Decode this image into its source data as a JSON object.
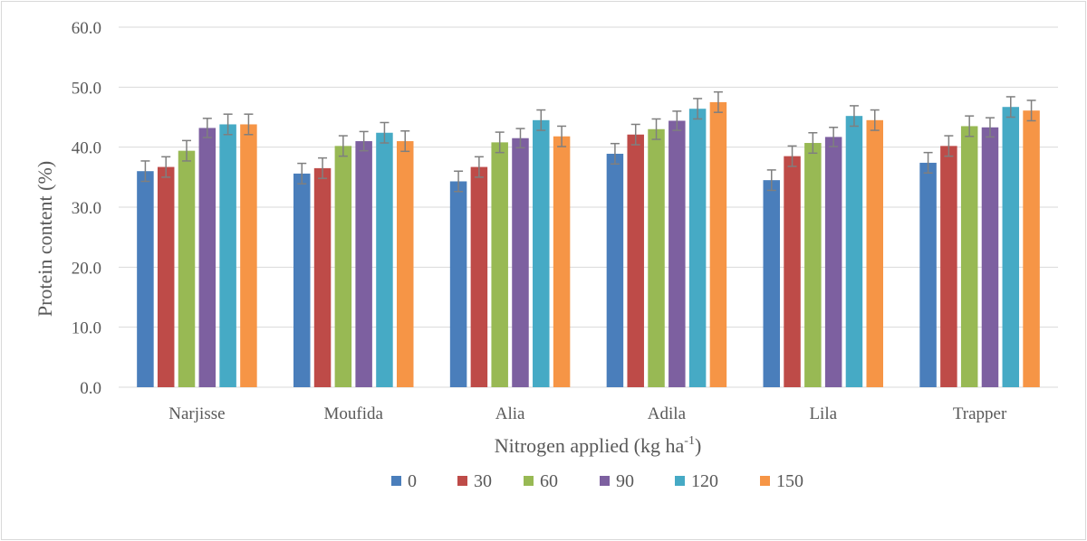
{
  "chart_data": {
    "type": "bar",
    "title": "",
    "xlabel": "Nitrogen applied (kg ha",
    "xlabel_superscript": "-1",
    "xlabel_close": ")",
    "ylabel": "Protein content (%)",
    "ylim": [
      0,
      60
    ],
    "yticks": [
      "0.0",
      "10.0",
      "20.0",
      "30.0",
      "40.0",
      "50.0",
      "60.0"
    ],
    "grid": true,
    "legend_position": "bottom",
    "categories": [
      "Narjisse",
      "Moufida",
      "Alia",
      "Adila",
      "Lila",
      "Trapper"
    ],
    "series": [
      {
        "name": "0",
        "color": "#4a7ebb",
        "values": [
          36.0,
          35.6,
          34.3,
          38.9,
          34.5,
          37.4
        ],
        "errors": [
          1.7,
          1.7,
          1.7,
          1.7,
          1.7,
          1.7
        ]
      },
      {
        "name": "30",
        "color": "#be4b48",
        "values": [
          36.7,
          36.5,
          36.7,
          42.1,
          38.5,
          40.2
        ],
        "errors": [
          1.7,
          1.7,
          1.7,
          1.7,
          1.7,
          1.7
        ]
      },
      {
        "name": "60",
        "color": "#98b954",
        "values": [
          39.4,
          40.2,
          40.8,
          43.0,
          40.7,
          43.5
        ],
        "errors": [
          1.7,
          1.7,
          1.7,
          1.7,
          1.7,
          1.7
        ]
      },
      {
        "name": "90",
        "color": "#7d60a0",
        "values": [
          43.2,
          41.0,
          41.5,
          44.4,
          41.7,
          43.3
        ],
        "errors": [
          1.6,
          1.6,
          1.6,
          1.6,
          1.6,
          1.6
        ]
      },
      {
        "name": "120",
        "color": "#46aac5",
        "values": [
          43.8,
          42.4,
          44.5,
          46.4,
          45.2,
          46.7
        ],
        "errors": [
          1.7,
          1.7,
          1.7,
          1.7,
          1.7,
          1.7
        ]
      },
      {
        "name": "150",
        "color": "#f69546",
        "values": [
          43.8,
          41.0,
          41.8,
          47.5,
          44.5,
          46.1
        ],
        "errors": [
          1.7,
          1.7,
          1.7,
          1.7,
          1.7,
          1.7
        ]
      }
    ]
  }
}
